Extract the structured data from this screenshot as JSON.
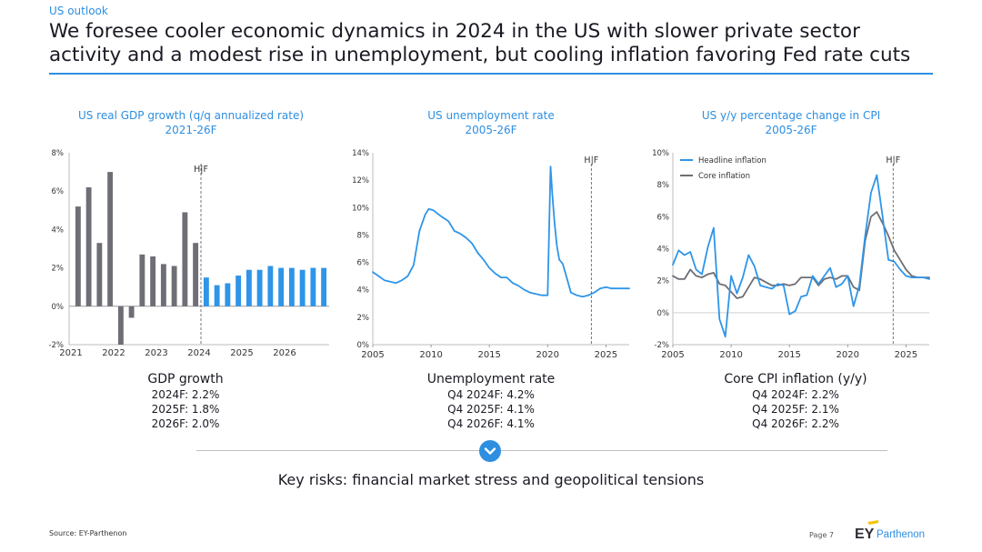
{
  "header": {
    "kicker": "US outlook",
    "title_line1": "We foresee cooler economic dynamics in 2024 in the US with slower private sector",
    "title_line2": "activity and a modest rise in unemployment, but cooling inflation favoring Fed rate cuts"
  },
  "panels": [
    {
      "title": "US real GDP growth (q/q annualized rate)",
      "subtitle": "2021-26F",
      "summary_title": "GDP growth",
      "summary_lines": [
        "2024F: 2.2%",
        "2025F: 1.8%",
        "2026F: 2.0%"
      ]
    },
    {
      "title": "US unemployment rate",
      "subtitle": "2005-26F",
      "summary_title": "Unemployment rate",
      "summary_lines": [
        "Q4 2024F: 4.2%",
        "Q4 2025F: 4.1%",
        "Q4 2026F: 4.1%"
      ]
    },
    {
      "title": "US y/y percentage change in CPI",
      "subtitle": "2005-26F",
      "summary_title": "Core CPI inflation (y/y)",
      "summary_lines": [
        "Q4 2024F: 2.2%",
        "Q4 2025F: 2.1%",
        "Q4 2026F: 2.2%"
      ]
    }
  ],
  "footer": {
    "key_risks": "Key risks: financial market stress and geopolitical tensions",
    "source": "Source: EY-Parthenon",
    "page": "Page 7",
    "logo_text": "EY Parthenon"
  },
  "colors": {
    "accent": "#2e8fe0",
    "history_bar": "#6e6e76",
    "forecast_bar": "#2e95e8",
    "headline": "#2e95e8",
    "core": "#6e6e76"
  },
  "icons": [
    "chevron-down-icon"
  ],
  "chart_data": [
    {
      "type": "bar",
      "title": "US real GDP growth (q/q annualized rate)",
      "subtitle": "2021-26F",
      "ylim": [
        -2,
        8
      ],
      "yticks": [
        "-2%",
        "0%",
        "2%",
        "4%",
        "6%",
        "8%"
      ],
      "xticks": [
        "2021",
        "2022",
        "2023",
        "2024",
        "2025",
        "2026"
      ],
      "x_start": 2021.0,
      "forecast_marker": {
        "label": "H|F",
        "x": 2024.0
      },
      "series": [
        {
          "name": "",
          "kind": "history",
          "values": [
            5.2,
            6.2,
            3.3,
            7.0,
            -2.0,
            -0.6,
            2.7,
            2.6,
            2.2,
            2.1,
            4.9,
            3.3
          ]
        },
        {
          "name": "",
          "kind": "forecast",
          "values": [
            1.5,
            1.1,
            1.2,
            1.6,
            1.9,
            1.9,
            2.1,
            2.0,
            2.0,
            1.9,
            2.0,
            2.0
          ]
        }
      ]
    },
    {
      "type": "line",
      "title": "US unemployment rate",
      "subtitle": "2005-26F",
      "ylim": [
        0,
        14
      ],
      "xlim": [
        2005,
        2027
      ],
      "yticks": [
        "0%",
        "2%",
        "4%",
        "6%",
        "8%",
        "10%",
        "12%",
        "14%"
      ],
      "xticks": [
        "2005",
        "2010",
        "2015",
        "2020",
        "2025"
      ],
      "forecast_marker": {
        "label": "H|F",
        "x": 2023.75
      },
      "series": [
        {
          "name": "",
          "x": [
            2005,
            2005.5,
            2006,
            2006.5,
            2007,
            2007.5,
            2008,
            2008.5,
            2009,
            2009.5,
            2009.8,
            2010.2,
            2010.8,
            2011.5,
            2012,
            2012.5,
            2013,
            2013.5,
            2014,
            2014.5,
            2015,
            2015.5,
            2016,
            2016.5,
            2017,
            2017.5,
            2018,
            2018.5,
            2019,
            2019.5,
            2020.0,
            2020.25,
            2020.4,
            2020.6,
            2020.8,
            2021,
            2021.3,
            2021.6,
            2022,
            2022.5,
            2023,
            2023.5,
            2024,
            2024.5,
            2025,
            2025.5,
            2026,
            2026.5,
            2027
          ],
          "values": [
            5.3,
            5.0,
            4.7,
            4.6,
            4.5,
            4.7,
            5.0,
            5.8,
            8.3,
            9.5,
            9.9,
            9.8,
            9.4,
            9.0,
            8.3,
            8.1,
            7.8,
            7.4,
            6.7,
            6.2,
            5.6,
            5.2,
            4.9,
            4.9,
            4.5,
            4.3,
            4.0,
            3.8,
            3.7,
            3.6,
            3.6,
            13.0,
            11.0,
            8.8,
            7.2,
            6.2,
            5.9,
            5.0,
            3.8,
            3.6,
            3.5,
            3.6,
            3.8,
            4.1,
            4.2,
            4.1,
            4.1,
            4.1,
            4.1
          ]
        }
      ]
    },
    {
      "type": "line",
      "title": "US y/y percentage change in CPI",
      "subtitle": "2005-26F",
      "ylim": [
        -2,
        10
      ],
      "xlim": [
        2005,
        2027
      ],
      "yticks": [
        "-2%",
        "0%",
        "2%",
        "4%",
        "6%",
        "8%",
        "10%"
      ],
      "xticks": [
        "2005",
        "2010",
        "2015",
        "2020",
        "2025"
      ],
      "legend": "top-left",
      "forecast_marker": {
        "label": "H|F",
        "x": 2023.9
      },
      "series": [
        {
          "name": "Headline inflation",
          "x": [
            2005,
            2005.5,
            2006,
            2006.5,
            2007,
            2007.5,
            2008,
            2008.5,
            2009,
            2009.5,
            2010,
            2010.5,
            2011,
            2011.5,
            2012,
            2012.5,
            2013,
            2013.5,
            2014,
            2014.5,
            2015,
            2015.5,
            2016,
            2016.5,
            2017,
            2017.5,
            2018,
            2018.5,
            2019,
            2019.5,
            2020,
            2020.5,
            2021,
            2021.5,
            2022,
            2022.5,
            2023,
            2023.5,
            2024,
            2024.5,
            2025,
            2025.5,
            2026,
            2026.5,
            2027
          ],
          "values": [
            3.0,
            3.9,
            3.6,
            3.8,
            2.7,
            2.4,
            4.1,
            5.3,
            -0.4,
            -1.5,
            2.3,
            1.2,
            2.2,
            3.6,
            2.9,
            1.7,
            1.6,
            1.5,
            1.8,
            1.7,
            -0.1,
            0.1,
            1.0,
            1.1,
            2.3,
            1.8,
            2.3,
            2.8,
            1.6,
            1.8,
            2.3,
            0.4,
            1.7,
            4.8,
            7.5,
            8.6,
            6.0,
            3.3,
            3.2,
            2.7,
            2.3,
            2.2,
            2.2,
            2.2,
            2.1
          ]
        },
        {
          "name": "Core inflation",
          "x": [
            2005,
            2005.5,
            2006,
            2006.5,
            2007,
            2007.5,
            2008,
            2008.5,
            2009,
            2009.5,
            2010,
            2010.5,
            2011,
            2011.5,
            2012,
            2012.5,
            2013,
            2013.5,
            2014,
            2014.5,
            2015,
            2015.5,
            2016,
            2016.5,
            2017,
            2017.5,
            2018,
            2018.5,
            2019,
            2019.5,
            2020,
            2020.5,
            2021,
            2021.5,
            2022,
            2022.5,
            2023,
            2023.5,
            2024,
            2024.5,
            2025,
            2025.5,
            2026,
            2026.5,
            2027
          ],
          "values": [
            2.3,
            2.1,
            2.1,
            2.7,
            2.3,
            2.2,
            2.4,
            2.5,
            1.8,
            1.7,
            1.3,
            0.9,
            1.0,
            1.6,
            2.2,
            2.1,
            1.9,
            1.7,
            1.7,
            1.8,
            1.7,
            1.8,
            2.2,
            2.2,
            2.2,
            1.7,
            2.1,
            2.2,
            2.1,
            2.3,
            2.3,
            1.6,
            1.4,
            4.5,
            6.0,
            6.3,
            5.6,
            4.8,
            3.9,
            3.3,
            2.7,
            2.3,
            2.2,
            2.2,
            2.2
          ]
        }
      ]
    }
  ]
}
